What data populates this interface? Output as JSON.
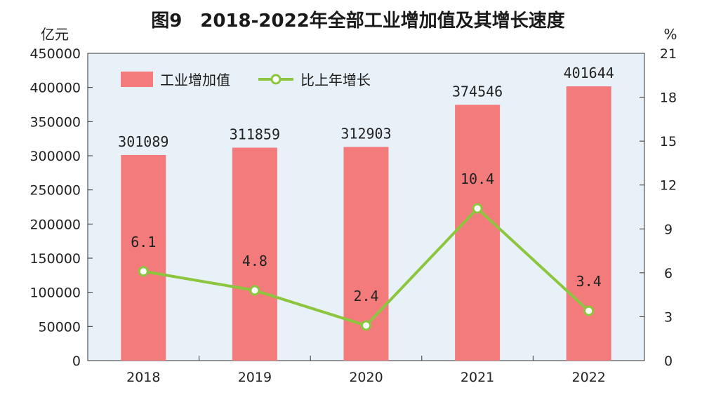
{
  "chart_data": {
    "type": "bar",
    "title": "图9　2018-2022年全部工业增加值及其增长速度",
    "left_unit": "亿元",
    "right_unit": "%",
    "categories": [
      "2018",
      "2019",
      "2020",
      "2021",
      "2022"
    ],
    "series": [
      {
        "name": "工业增加值",
        "type": "bar",
        "axis": "left",
        "color": "#f47b7b",
        "values": [
          301089,
          311859,
          312903,
          374546,
          401644
        ],
        "labels": [
          "301089",
          "311859",
          "312903",
          "374546",
          "401644"
        ]
      },
      {
        "name": "比上年增长",
        "type": "line",
        "axis": "right",
        "color": "#8cc63f",
        "values": [
          6.1,
          4.8,
          2.4,
          10.4,
          3.4
        ],
        "labels": [
          "6.1",
          "4.8",
          "2.4",
          "10.4",
          "3.4"
        ]
      }
    ],
    "ylim_left": [
      0,
      450000
    ],
    "yticks_left": [
      "0",
      "50000",
      "100000",
      "150000",
      "200000",
      "250000",
      "300000",
      "350000",
      "400000",
      "450000"
    ],
    "ylim_right": [
      0,
      21
    ],
    "yticks_right": [
      "0",
      "3",
      "6",
      "9",
      "12",
      "15",
      "18",
      "21"
    ],
    "plot_background": "#e8f1f8",
    "grid": false,
    "legend_position": "top-left"
  }
}
